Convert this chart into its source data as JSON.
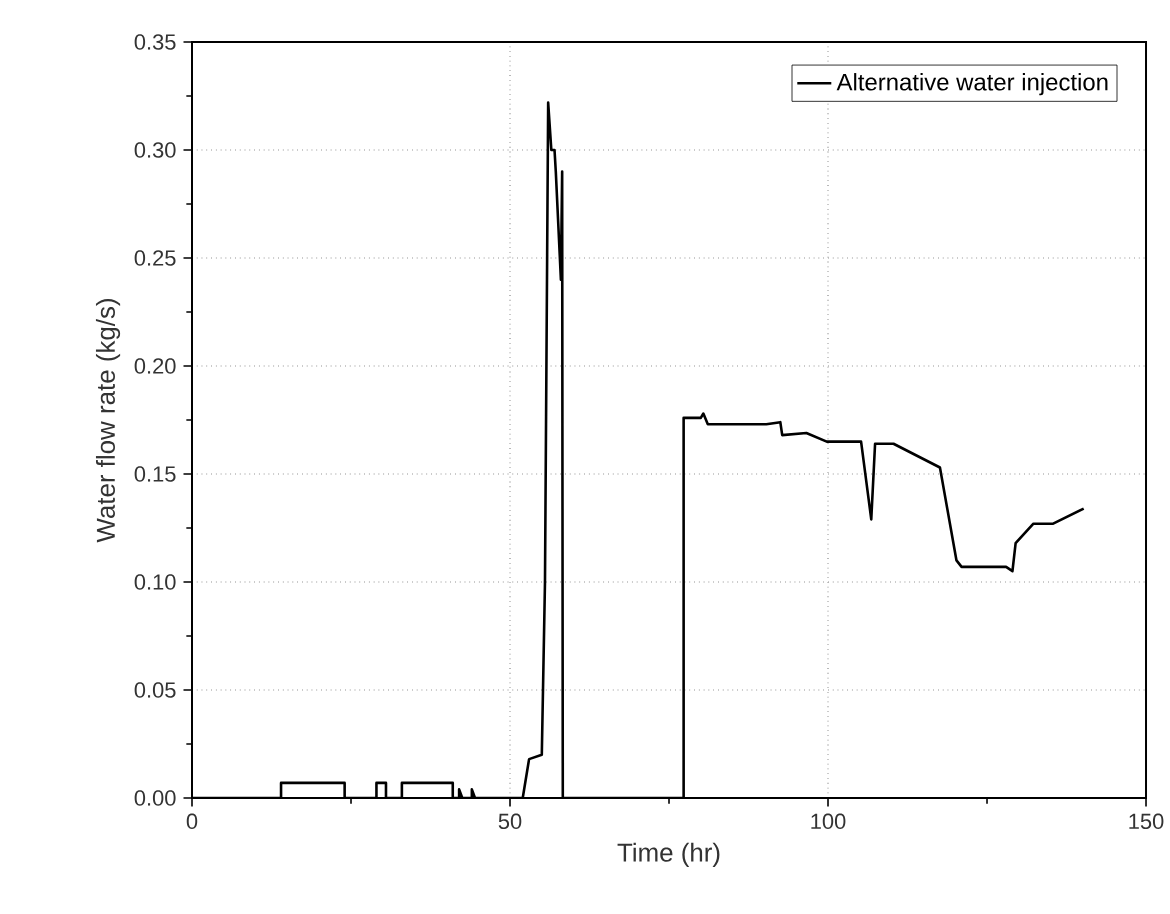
{
  "chart_data": {
    "type": "line",
    "xlabel": "Time (hr)",
    "ylabel": "Water flow rate (kg/s)",
    "xlim": [
      0,
      150
    ],
    "ylim": [
      0,
      0.35
    ],
    "xticks": [
      0,
      50,
      100,
      150
    ],
    "yticks": [
      {
        "value": 0,
        "label": "0.00"
      },
      {
        "value": 0.05,
        "label": "0.05"
      },
      {
        "value": 0.1,
        "label": "0.10"
      },
      {
        "value": 0.15,
        "label": "0.15"
      },
      {
        "value": 0.2,
        "label": "0.20"
      },
      {
        "value": 0.25,
        "label": "0.25"
      },
      {
        "value": 0.3,
        "label": "0.30"
      },
      {
        "value": 0.35,
        "label": "0.35"
      }
    ],
    "grid": true,
    "legend": "top right",
    "series": [
      {
        "name": "Alternative water injection",
        "color": "#000000",
        "x": [
          0,
          14,
          14,
          24,
          24,
          29,
          29,
          30.5,
          30.5,
          33,
          33,
          41,
          41,
          42,
          42,
          42.5,
          44,
          44,
          44.5,
          52,
          53,
          55,
          55.5,
          56,
          56.5,
          57,
          57.2,
          58,
          58.2,
          58.3,
          77.3,
          77.3,
          80,
          80.4,
          81.1,
          90.3,
          92.5,
          92.8,
          96.6,
          99.8,
          105.2,
          106.8,
          107.4,
          110.3,
          117.6,
          120.2,
          121,
          128,
          129,
          129.5,
          132.3,
          135.4,
          140.2
        ],
        "values": [
          0,
          0,
          0.007,
          0.007,
          0,
          0,
          0.007,
          0.007,
          0,
          0,
          0.007,
          0.007,
          0,
          0,
          0.004,
          0,
          0,
          0.004,
          0,
          0,
          0.018,
          0.02,
          0.1,
          0.322,
          0.3,
          0.3,
          0.29,
          0.24,
          0.29,
          0,
          0,
          0.176,
          0.176,
          0.178,
          0.173,
          0.173,
          0.174,
          0.168,
          0.169,
          0.165,
          0.165,
          0.129,
          0.164,
          0.164,
          0.153,
          0.11,
          0.107,
          0.107,
          0.105,
          0.118,
          0.127,
          0.127,
          0.134
        ]
      }
    ]
  }
}
